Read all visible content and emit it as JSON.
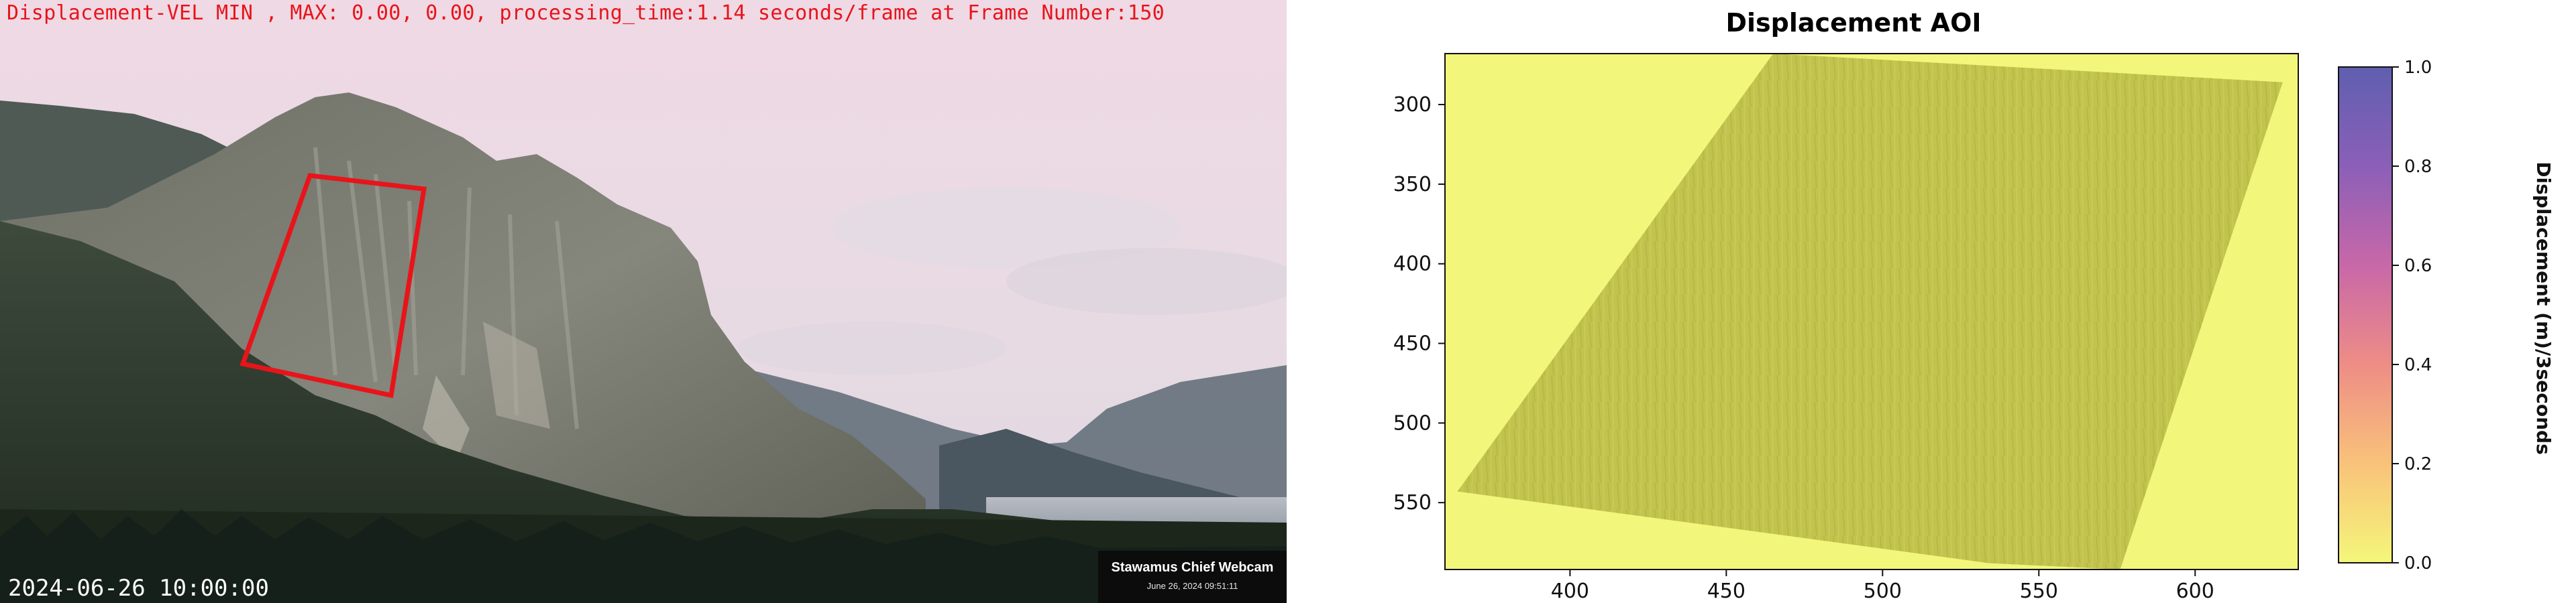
{
  "webcam": {
    "overlay_text": "Displacement-VEL MIN , MAX: 0.00, 0.00, processing_time:1.14 seconds/frame at Frame Number:150",
    "timestamp": "2024-06-26 10:00:00",
    "camera_title": "Stawamus Chief Webcam",
    "camera_date": "June 26, 2024 09:51:11",
    "overlay_color": "#e8141a",
    "aoi_outline_color": "#e8141a"
  },
  "chart_data": {
    "type": "heatmap",
    "title": "Displacement AOI",
    "xlabel": "",
    "ylabel": "",
    "xlim": [
      360,
      633
    ],
    "ylim": [
      592,
      268
    ],
    "x_ticks": [
      "400",
      "450",
      "500",
      "550",
      "600"
    ],
    "y_ticks": [
      "300",
      "350",
      "400",
      "450",
      "500",
      "550"
    ],
    "colorbar": {
      "label": "Displacement (m)/3seconds",
      "range": [
        0.0,
        1.0
      ],
      "ticks": [
        "0.0",
        "0.2",
        "0.4",
        "0.6",
        "0.8",
        "1.0"
      ],
      "colors": [
        "#f4f77a",
        "#f9c27a",
        "#ee8d86",
        "#c868a8",
        "#8b5fb8",
        "#5f5fb0"
      ]
    },
    "aoi_polygon": [
      [
        364,
        543
      ],
      [
        465,
        268
      ],
      [
        628,
        286
      ],
      [
        576,
        592
      ],
      [
        534,
        588
      ],
      [
        474,
        572
      ]
    ],
    "value_range_shown": [
      0.0,
      0.0
    ],
    "background_color": "#f2f67a",
    "aoi_fill_color": "#c2c44e"
  }
}
